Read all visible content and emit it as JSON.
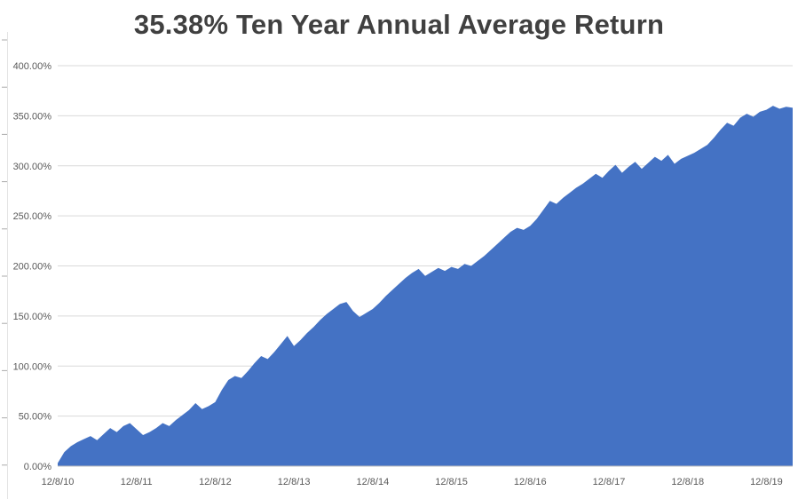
{
  "chart_data": {
    "type": "area",
    "title": "35.38% Ten Year Annual Average Return",
    "xlabel": "",
    "ylabel": "",
    "legend": "none",
    "grid": true,
    "ylim": [
      0,
      400
    ],
    "y_tick_step": 50,
    "y_tick_labels": [
      "0.00%",
      "50.00%",
      "100.00%",
      "150.00%",
      "200.00%",
      "250.00%",
      "300.00%",
      "350.00%",
      "400.00%"
    ],
    "x_tick_labels": [
      "12/8/10",
      "12/8/11",
      "12/8/12",
      "12/8/13",
      "12/8/14",
      "12/8/15",
      "12/8/16",
      "12/8/17",
      "12/8/18",
      "12/8/19"
    ],
    "x_label_every_n_points": 12,
    "colors": {
      "fill": "#4472C4",
      "title": "#404040",
      "axis_text": "#595959",
      "gridline": "#D9D9D9",
      "axis_line": "#BFBFBF"
    },
    "values": [
      3,
      14,
      20,
      24,
      27,
      30,
      26,
      32,
      38,
      34,
      40,
      43,
      37,
      31,
      34,
      38,
      43,
      40,
      46,
      51,
      56,
      63,
      57,
      60,
      64,
      76,
      86,
      90,
      88,
      95,
      103,
      110,
      107,
      114,
      122,
      130,
      120,
      126,
      133,
      139,
      146,
      152,
      157,
      162,
      164,
      155,
      149,
      153,
      157,
      163,
      170,
      176,
      182,
      188,
      193,
      197,
      190,
      194,
      198,
      195,
      199,
      197,
      202,
      200,
      205,
      210,
      216,
      222,
      228,
      234,
      238,
      236,
      240,
      247,
      256,
      265,
      262,
      268,
      273,
      278,
      282,
      287,
      292,
      288,
      295,
      301,
      293,
      299,
      304,
      297,
      303,
      309,
      305,
      311,
      302,
      307,
      310,
      313,
      317,
      321,
      328,
      336,
      343,
      340,
      348,
      352,
      349,
      354,
      356,
      360,
      357,
      359,
      358
    ]
  }
}
